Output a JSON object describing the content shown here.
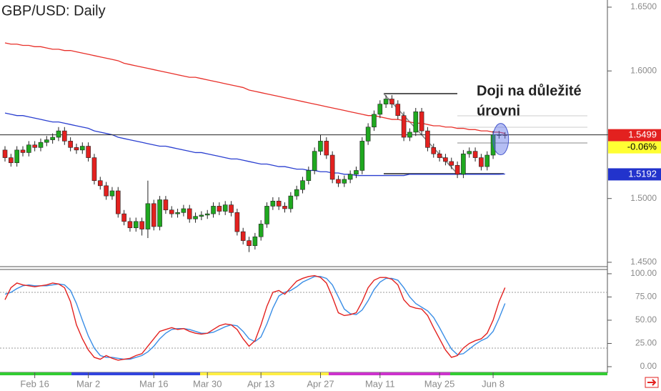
{
  "chart_data": [
    {
      "type": "candlestick",
      "title": "GBP/USD: Daily",
      "open": [
        1.538,
        1.532,
        1.528,
        1.538,
        1.536,
        1.542,
        1.54,
        1.544,
        1.546,
        1.548,
        1.553,
        1.545,
        1.54,
        1.538,
        1.541,
        1.532,
        1.514,
        1.51,
        1.502,
        1.506,
        1.488,
        1.482,
        1.477,
        1.482,
        1.476,
        1.496,
        1.478,
        1.499,
        1.491,
        1.488,
        1.489,
        1.492,
        1.484,
        1.486,
        1.487,
        1.488,
        1.494,
        1.49,
        1.495,
        1.489,
        1.474,
        1.467,
        1.463,
        1.47,
        1.48,
        1.494,
        1.498,
        1.494,
        1.492,
        1.502,
        1.507,
        1.514,
        1.522,
        1.537,
        1.545,
        1.534,
        1.515,
        1.512,
        1.515,
        1.519,
        1.522,
        1.545,
        1.556,
        1.566,
        1.574,
        1.578,
        1.574,
        1.565,
        1.548,
        1.552,
        1.568,
        1.553,
        1.54,
        1.535,
        1.532,
        1.529,
        1.526,
        1.519,
        1.535,
        1.537,
        1.532,
        1.525,
        1.534,
        1.55,
        1.55
      ],
      "high": [
        1.541,
        1.535,
        1.541,
        1.541,
        1.545,
        1.545,
        1.547,
        1.549,
        1.551,
        1.556,
        1.556,
        1.548,
        1.543,
        1.544,
        1.544,
        1.535,
        1.517,
        1.513,
        1.509,
        1.509,
        1.491,
        1.485,
        1.485,
        1.485,
        1.514,
        1.499,
        1.502,
        1.502,
        1.494,
        1.492,
        1.495,
        1.495,
        1.489,
        1.49,
        1.491,
        1.497,
        1.497,
        1.498,
        1.498,
        1.492,
        1.477,
        1.47,
        1.473,
        1.483,
        1.497,
        1.501,
        1.501,
        1.497,
        1.505,
        1.51,
        1.517,
        1.525,
        1.54,
        1.55,
        1.548,
        1.537,
        1.518,
        1.518,
        1.522,
        1.525,
        1.548,
        1.559,
        1.569,
        1.577,
        1.581,
        1.581,
        1.577,
        1.568,
        1.555,
        1.571,
        1.571,
        1.556,
        1.543,
        1.538,
        1.535,
        1.532,
        1.529,
        1.538,
        1.54,
        1.54,
        1.535,
        1.537,
        1.553,
        1.553,
        1.552
      ],
      "low": [
        1.529,
        1.525,
        1.525,
        1.533,
        1.533,
        1.537,
        1.537,
        1.541,
        1.543,
        1.545,
        1.542,
        1.537,
        1.535,
        1.535,
        1.529,
        1.511,
        1.507,
        1.499,
        1.499,
        1.485,
        1.479,
        1.474,
        1.474,
        1.471,
        1.469,
        1.475,
        1.475,
        1.488,
        1.485,
        1.485,
        1.486,
        1.481,
        1.481,
        1.483,
        1.484,
        1.485,
        1.487,
        1.487,
        1.486,
        1.471,
        1.464,
        1.458,
        1.46,
        1.467,
        1.477,
        1.491,
        1.491,
        1.489,
        1.489,
        1.499,
        1.504,
        1.511,
        1.519,
        1.534,
        1.531,
        1.512,
        1.509,
        1.509,
        1.512,
        1.516,
        1.519,
        1.542,
        1.553,
        1.563,
        1.571,
        1.571,
        1.562,
        1.545,
        1.545,
        1.549,
        1.55,
        1.537,
        1.532,
        1.529,
        1.526,
        1.523,
        1.516,
        1.516,
        1.532,
        1.529,
        1.522,
        1.522,
        1.531,
        1.547,
        1.547
      ],
      "close": [
        1.532,
        1.528,
        1.538,
        1.536,
        1.542,
        1.54,
        1.544,
        1.546,
        1.548,
        1.553,
        1.545,
        1.54,
        1.538,
        1.541,
        1.532,
        1.514,
        1.51,
        1.502,
        1.506,
        1.488,
        1.482,
        1.477,
        1.482,
        1.476,
        1.496,
        1.478,
        1.499,
        1.491,
        1.488,
        1.489,
        1.492,
        1.484,
        1.486,
        1.487,
        1.488,
        1.494,
        1.49,
        1.495,
        1.489,
        1.474,
        1.467,
        1.463,
        1.47,
        1.48,
        1.494,
        1.498,
        1.494,
        1.492,
        1.502,
        1.507,
        1.514,
        1.522,
        1.537,
        1.545,
        1.534,
        1.515,
        1.512,
        1.515,
        1.519,
        1.522,
        1.545,
        1.556,
        1.566,
        1.574,
        1.578,
        1.574,
        1.565,
        1.548,
        1.552,
        1.568,
        1.553,
        1.54,
        1.535,
        1.532,
        1.529,
        1.526,
        1.519,
        1.535,
        1.537,
        1.532,
        1.525,
        1.534,
        1.55,
        1.55,
        1.5499
      ],
      "up_color": "#1fa81f",
      "down_color": "#e3211f",
      "series": [
        {
          "color": "#e8302a",
          "values": [
            1.622,
            1.621,
            1.621,
            1.62,
            1.62,
            1.619,
            1.619,
            1.618,
            1.617,
            1.617,
            1.616,
            1.616,
            1.615,
            1.614,
            1.613,
            1.612,
            1.611,
            1.61,
            1.609,
            1.608,
            1.606,
            1.605,
            1.604,
            1.603,
            1.602,
            1.601,
            1.6,
            1.599,
            1.598,
            1.597,
            1.596,
            1.595,
            1.595,
            1.594,
            1.593,
            1.592,
            1.591,
            1.59,
            1.589,
            1.588,
            1.587,
            1.585,
            1.584,
            1.583,
            1.582,
            1.581,
            1.58,
            1.579,
            1.578,
            1.577,
            1.576,
            1.575,
            1.574,
            1.573,
            1.572,
            1.571,
            1.57,
            1.569,
            1.568,
            1.567,
            1.566,
            1.565,
            1.565,
            1.564,
            1.563,
            1.562,
            1.562,
            1.561,
            1.56,
            1.559,
            1.559,
            1.558,
            1.557,
            1.557,
            1.556,
            1.556,
            1.555,
            1.555,
            1.554,
            1.554,
            1.553,
            1.553,
            1.552,
            1.552,
            1.551
          ]
        },
        {
          "color": "#2a3fd0",
          "values": [
            1.567,
            1.566,
            1.565,
            1.565,
            1.564,
            1.563,
            1.562,
            1.561,
            1.56,
            1.56,
            1.559,
            1.558,
            1.557,
            1.556,
            1.555,
            1.553,
            1.552,
            1.551,
            1.55,
            1.548,
            1.547,
            1.546,
            1.545,
            1.544,
            1.543,
            1.542,
            1.541,
            1.541,
            1.54,
            1.539,
            1.538,
            1.537,
            1.536,
            1.536,
            1.535,
            1.534,
            1.533,
            1.532,
            1.531,
            1.531,
            1.53,
            1.529,
            1.528,
            1.527,
            1.527,
            1.526,
            1.525,
            1.525,
            1.524,
            1.523,
            1.523,
            1.522,
            1.522,
            1.521,
            1.521,
            1.52,
            1.52,
            1.519,
            1.519,
            1.518,
            1.518,
            1.518,
            1.518,
            1.518,
            1.518,
            1.518,
            1.518,
            1.518,
            1.519,
            1.519,
            1.519,
            1.519,
            1.519,
            1.519,
            1.519,
            1.519,
            1.519,
            1.519,
            1.519,
            1.519,
            1.519,
            1.519,
            1.519,
            1.519,
            1.5192
          ]
        }
      ],
      "price_labels": [
        {
          "value": 1.5499,
          "label": "1.5499",
          "color": "#e3211f"
        },
        {
          "value": -0.06,
          "label": "-0.06%",
          "color": "#ffff33"
        },
        {
          "value": 1.5192,
          "label": "1.5192",
          "color": "#2233cc"
        }
      ],
      "annotation": [
        "Doji na důležité",
        "úrovni"
      ],
      "ylim": [
        1.4466,
        1.6556
      ],
      "yticks": [
        {
          "value": 1.65,
          "label": "1.6500"
        },
        {
          "value": 1.6,
          "label": "1.6000"
        },
        {
          "value": 1.55,
          "label": "1.5500"
        },
        {
          "value": 1.5,
          "label": "1.5000"
        },
        {
          "value": 1.45,
          "label": "1.4500"
        }
      ]
    },
    {
      "type": "line",
      "categories": [
        null,
        null,
        null,
        null,
        null,
        "Feb 16",
        null,
        null,
        null,
        null,
        null,
        null,
        null,
        null,
        "Mar 2",
        null,
        null,
        null,
        null,
        null,
        null,
        null,
        null,
        null,
        null,
        "Mar 16",
        null,
        null,
        null,
        null,
        null,
        null,
        null,
        null,
        "Mar 30",
        null,
        null,
        null,
        null,
        null,
        null,
        null,
        null,
        "Apr 13",
        null,
        null,
        null,
        null,
        null,
        null,
        null,
        null,
        null,
        "Apr 27",
        null,
        null,
        null,
        null,
        null,
        null,
        null,
        null,
        null,
        "May 11",
        null,
        null,
        null,
        null,
        null,
        null,
        null,
        null,
        null,
        "May 25",
        null,
        null,
        null,
        null,
        null,
        null,
        null,
        null,
        "Jun 8",
        null,
        null
      ],
      "series": [
        {
          "color": "#e3211f",
          "values": [
            72,
            85,
            90,
            88,
            87,
            86,
            87,
            88,
            90,
            89,
            85,
            70,
            45,
            30,
            18,
            10,
            8,
            12,
            9,
            7,
            8,
            9,
            12,
            14,
            22,
            30,
            38,
            40,
            42,
            40,
            41,
            38,
            36,
            35,
            36,
            40,
            44,
            46,
            45,
            40,
            30,
            22,
            28,
            45,
            65,
            80,
            82,
            78,
            85,
            92,
            95,
            97,
            98,
            96,
            90,
            75,
            58,
            55,
            56,
            58,
            70,
            85,
            93,
            96,
            96,
            94,
            88,
            72,
            65,
            63,
            62,
            55,
            42,
            30,
            18,
            10,
            12,
            20,
            25,
            28,
            30,
            36,
            50,
            70,
            85
          ]
        },
        {
          "color": "#3a8ee6",
          "values": [
            78,
            80,
            84,
            87,
            88,
            87,
            87,
            87,
            88,
            89,
            88,
            82,
            68,
            50,
            33,
            20,
            12,
            10,
            10,
            9,
            8,
            8,
            10,
            12,
            16,
            22,
            30,
            36,
            40,
            41,
            41,
            40,
            38,
            36,
            36,
            37,
            40,
            43,
            45,
            44,
            38,
            30,
            27,
            32,
            46,
            63,
            76,
            80,
            82,
            86,
            91,
            94,
            97,
            97,
            95,
            88,
            75,
            62,
            57,
            56,
            61,
            71,
            83,
            91,
            95,
            95,
            93,
            85,
            75,
            68,
            64,
            60,
            53,
            42,
            30,
            19,
            13,
            14,
            19,
            24,
            28,
            31,
            38,
            52,
            68
          ]
        }
      ],
      "levels": [
        20,
        80
      ],
      "ylim": [
        -5.4,
        103.8
      ],
      "yticks": [
        {
          "value": 100,
          "label": "100.00"
        },
        {
          "value": 75,
          "label": "75.00"
        },
        {
          "value": 50,
          "label": "50.00"
        },
        {
          "value": 25,
          "label": "25.00"
        },
        {
          "value": 0,
          "label": "0.00"
        }
      ]
    }
  ]
}
